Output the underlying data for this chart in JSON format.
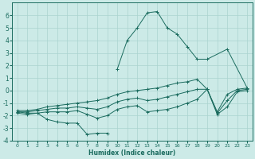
{
  "xlabel": "Humidex (Indice chaleur)",
  "x_all": [
    0,
    1,
    2,
    3,
    4,
    5,
    6,
    7,
    8,
    9,
    10,
    11,
    12,
    13,
    14,
    15,
    16,
    17,
    18,
    19,
    20,
    21,
    22,
    23
  ],
  "line_max": [
    null,
    null,
    null,
    null,
    null,
    null,
    null,
    null,
    null,
    null,
    1.7,
    4.0,
    5.0,
    6.2,
    6.3,
    5.0,
    4.5,
    3.5,
    2.5,
    2.5,
    null,
    3.3,
    null,
    0.2
  ],
  "line_mean": [
    -1.7,
    -1.7,
    -1.6,
    -1.5,
    -1.4,
    -1.4,
    -1.3,
    -1.4,
    -1.5,
    -1.3,
    -0.9,
    -0.7,
    -0.6,
    -0.8,
    -0.7,
    -0.5,
    -0.3,
    -0.1,
    0.1,
    0.1,
    -1.8,
    -0.8,
    0.0,
    0.1
  ],
  "line_min": [
    -1.7,
    -1.8,
    -1.8,
    -2.3,
    -2.5,
    -2.6,
    -2.6,
    -3.5,
    -3.4,
    -3.4,
    null,
    null,
    null,
    null,
    null,
    null,
    null,
    null,
    null,
    null,
    null,
    null,
    null,
    null
  ],
  "line_upper": [
    -1.6,
    -1.6,
    -1.5,
    -1.3,
    -1.2,
    -1.1,
    -1.0,
    -0.9,
    -0.8,
    -0.6,
    -0.3,
    -0.1,
    0.0,
    0.1,
    0.2,
    0.4,
    0.6,
    0.7,
    0.9,
    0.1,
    -1.7,
    -0.3,
    0.1,
    0.2
  ],
  "line_lower": [
    -1.8,
    -1.9,
    -1.8,
    -1.7,
    -1.7,
    -1.7,
    -1.6,
    -1.9,
    -2.2,
    -2.0,
    -1.5,
    -1.3,
    -1.2,
    -1.7,
    -1.6,
    -1.5,
    -1.3,
    -1.0,
    -0.7,
    0.1,
    -1.9,
    -1.3,
    -0.1,
    0.0
  ],
  "bg_color": "#cceae7",
  "grid_color": "#aad4d0",
  "line_color": "#1a6b5e",
  "ylim": [
    -4,
    7
  ],
  "xlim": [
    -0.5,
    23.5
  ],
  "yticks": [
    -4,
    -3,
    -2,
    -1,
    0,
    1,
    2,
    3,
    4,
    5,
    6
  ],
  "xticks": [
    0,
    1,
    2,
    3,
    4,
    5,
    6,
    7,
    8,
    9,
    10,
    11,
    12,
    13,
    14,
    15,
    16,
    17,
    18,
    19,
    20,
    21,
    22,
    23
  ]
}
